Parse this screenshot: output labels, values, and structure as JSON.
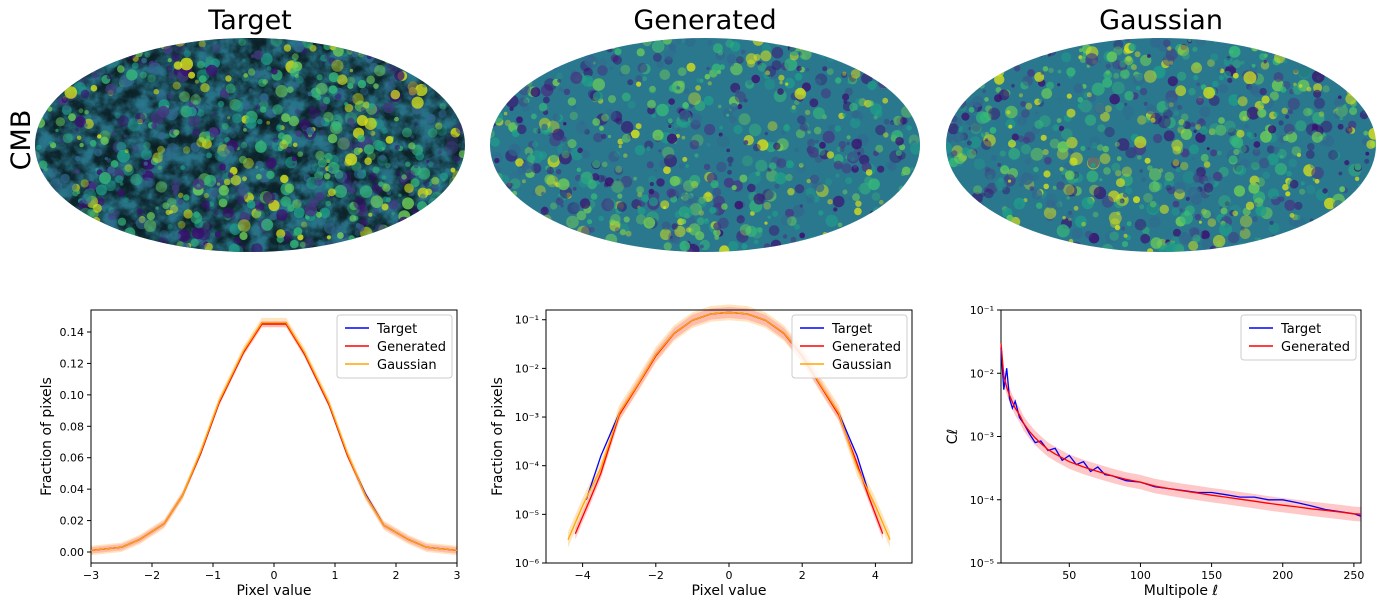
{
  "figure": {
    "row_label": "CMB",
    "map_titles": [
      "Target",
      "Generated",
      "Gaussian"
    ]
  },
  "colors": {
    "target": "#0000ff",
    "generated": "#ff0000",
    "gaussian": "#ffa500",
    "generated_band": "#ff9a9a",
    "gaussian_band": "#ffcf8a",
    "map_low": "#3b0f70",
    "map_mid": "#21918c",
    "map_high": "#d8e219"
  },
  "chart_data": [
    {
      "type": "line",
      "xlabel": "Pixel value",
      "ylabel": "Fraction of pixels",
      "xlim": [
        -3,
        3
      ],
      "ylim": [
        -0.007,
        0.154
      ],
      "xticks": [
        -3,
        -2,
        -1,
        0,
        1,
        2,
        3
      ],
      "xtick_labels": [
        "−3",
        "−2",
        "−1",
        "0",
        "1",
        "2",
        "3"
      ],
      "yticks": [
        0.0,
        0.02,
        0.04,
        0.06,
        0.08,
        0.1,
        0.12,
        0.14
      ],
      "ytick_labels": [
        "0.00",
        "0.02",
        "0.04",
        "0.06",
        "0.08",
        "0.10",
        "0.12",
        "0.14"
      ],
      "legend_position": "top-right",
      "x": [
        -3.0,
        -2.5,
        -2.2,
        -1.8,
        -1.5,
        -1.2,
        -0.9,
        -0.5,
        -0.2,
        0.2,
        0.5,
        0.9,
        1.2,
        1.5,
        1.8,
        2.2,
        2.5,
        3.0
      ],
      "series": [
        {
          "name": "Target",
          "values": [
            0.001,
            0.003,
            0.008,
            0.018,
            0.036,
            0.063,
            0.095,
            0.127,
            0.146,
            0.146,
            0.126,
            0.094,
            0.062,
            0.037,
            0.017,
            0.008,
            0.003,
            0.001
          ]
        },
        {
          "name": "Generated",
          "values": [
            0.001,
            0.003,
            0.008,
            0.018,
            0.036,
            0.063,
            0.095,
            0.127,
            0.145,
            0.145,
            0.126,
            0.094,
            0.062,
            0.036,
            0.017,
            0.008,
            0.003,
            0.001
          ]
        },
        {
          "name": "Gaussian",
          "values": [
            0.001,
            0.003,
            0.008,
            0.018,
            0.036,
            0.064,
            0.096,
            0.128,
            0.146,
            0.146,
            0.127,
            0.095,
            0.063,
            0.036,
            0.017,
            0.008,
            0.003,
            0.001
          ]
        }
      ]
    },
    {
      "type": "line",
      "xlabel": "Pixel value",
      "ylabel": "Fraction of pixels",
      "xlim": [
        -5,
        5
      ],
      "ylim": [
        1e-06,
        0.1585
      ],
      "log_y": true,
      "xticks": [
        -4,
        -2,
        0,
        2,
        4
      ],
      "xtick_labels": [
        "−4",
        "−2",
        "0",
        "2",
        "4"
      ],
      "yticks": [
        1e-06,
        1e-05,
        0.0001,
        0.001,
        0.01,
        0.1
      ],
      "ytick_labels": [
        "10⁻⁶",
        "10⁻⁵",
        "10⁻⁴",
        "10⁻³",
        "10⁻²",
        "10⁻¹"
      ],
      "legend_position": "top-right",
      "series": [
        {
          "name": "Target",
          "x": [
            -3.9,
            -3.5,
            -3.0,
            -2.5,
            -2.0,
            -1.5,
            -1.0,
            -0.5,
            0.0,
            0.5,
            1.0,
            1.5,
            2.0,
            2.5,
            3.0,
            3.5,
            3.8
          ],
          "values": [
            2e-05,
            0.00016,
            0.0012,
            0.0045,
            0.019,
            0.053,
            0.098,
            0.132,
            0.142,
            0.132,
            0.098,
            0.053,
            0.019,
            0.0045,
            0.0012,
            0.00016,
            3e-05
          ]
        },
        {
          "name": "Generated",
          "x": [
            -4.2,
            -3.8,
            -3.5,
            -3.0,
            -2.5,
            -2.0,
            -1.5,
            -1.0,
            -0.5,
            0.0,
            0.5,
            1.0,
            1.5,
            2.0,
            2.5,
            3.0,
            3.5,
            3.8,
            4.2
          ],
          "values": [
            4e-06,
            2e-05,
            7e-05,
            0.0011,
            0.0044,
            0.018,
            0.052,
            0.097,
            0.131,
            0.141,
            0.131,
            0.097,
            0.052,
            0.018,
            0.0044,
            0.0011,
            0.00011,
            2.5e-05,
            4e-06
          ]
        },
        {
          "name": "Gaussian",
          "x": [
            -4.4,
            -4.0,
            -3.5,
            -3.0,
            -2.5,
            -2.0,
            -1.5,
            -1.0,
            -0.5,
            0.0,
            0.5,
            1.0,
            1.5,
            2.0,
            2.5,
            3.0,
            3.5,
            4.0,
            4.4
          ],
          "values": [
            3e-06,
            1.5e-05,
            9e-05,
            0.0012,
            0.0046,
            0.019,
            0.053,
            0.098,
            0.132,
            0.142,
            0.132,
            0.098,
            0.053,
            0.019,
            0.0046,
            0.0012,
            9e-05,
            1.5e-05,
            3e-06
          ]
        }
      ]
    },
    {
      "type": "line",
      "xlabel": "Multipole ℓ",
      "ylabel": "Cℓ",
      "xlim": [
        2,
        255
      ],
      "ylim": [
        1e-05,
        0.1
      ],
      "log_y": true,
      "xticks": [
        50,
        100,
        150,
        200,
        250
      ],
      "xtick_labels": [
        "50",
        "100",
        "150",
        "200",
        "250"
      ],
      "yticks": [
        1e-05,
        0.0001,
        0.001,
        0.01,
        0.1
      ],
      "ytick_labels": [
        "10⁻⁵",
        "10⁻⁴",
        "10⁻³",
        "10⁻²",
        "10⁻¹"
      ],
      "legend_position": "top-right",
      "series": [
        {
          "name": "Target",
          "x": [
            2,
            4,
            6,
            8,
            10,
            12,
            15,
            18,
            22,
            26,
            30,
            35,
            40,
            45,
            50,
            55,
            60,
            65,
            70,
            75,
            80,
            90,
            100,
            110,
            120,
            130,
            140,
            150,
            160,
            170,
            180,
            190,
            200,
            210,
            220,
            230,
            240,
            250,
            255
          ],
          "values": [
            0.025,
            0.0055,
            0.012,
            0.004,
            0.0028,
            0.0036,
            0.002,
            0.0016,
            0.0011,
            0.0008,
            0.00085,
            0.0006,
            0.00065,
            0.00042,
            0.0005,
            0.00036,
            0.0004,
            0.00028,
            0.00033,
            0.00025,
            0.00024,
            0.0002,
            0.00019,
            0.00016,
            0.00015,
            0.00014,
            0.00013,
            0.00013,
            0.00012,
            0.00011,
            0.00011,
            0.0001,
            0.0001,
            9e-05,
            8e-05,
            7e-05,
            6.5e-05,
            6e-05,
            5.5e-05
          ]
        },
        {
          "name": "Generated",
          "x": [
            2,
            4,
            6,
            8,
            10,
            12,
            15,
            18,
            22,
            26,
            30,
            35,
            40,
            45,
            50,
            60,
            70,
            80,
            90,
            100,
            110,
            120,
            130,
            140,
            150,
            160,
            170,
            180,
            190,
            200,
            210,
            220,
            230,
            240,
            250,
            255
          ],
          "values": [
            0.03,
            0.009,
            0.006,
            0.0045,
            0.0035,
            0.0028,
            0.0022,
            0.0016,
            0.0012,
            0.00095,
            0.00078,
            0.00062,
            0.00053,
            0.00046,
            0.0004,
            0.00033,
            0.00028,
            0.00024,
            0.00021,
            0.00019,
            0.000165,
            0.00015,
            0.000138,
            0.000128,
            0.000118,
            0.00011,
            0.000102,
            9.5e-05,
            8.8e-05,
            8.2e-05,
            7.7e-05,
            7.2e-05,
            6.8e-05,
            6.4e-05,
            6e-05,
            5.9e-05
          ]
        }
      ]
    }
  ]
}
